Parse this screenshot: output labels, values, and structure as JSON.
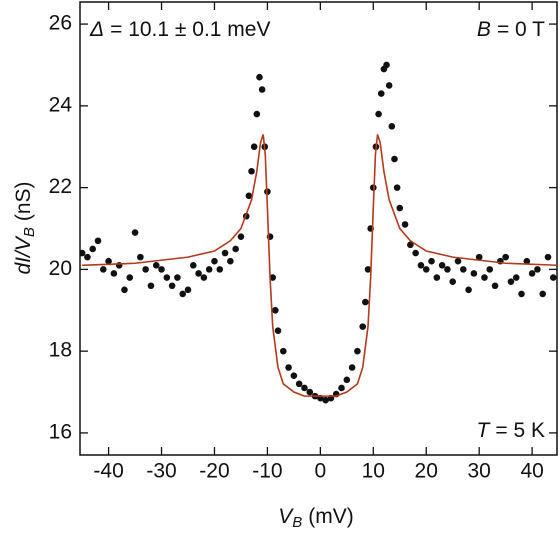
{
  "chart_data": {
    "type": "scatter",
    "xlabel": {
      "main": "V",
      "sub": "B",
      "unit": "(mV)"
    },
    "ylabel": {
      "main": "dI/V",
      "sub": "B",
      "unit": "(nS)"
    },
    "annotations": [
      {
        "symbol": "Δ",
        "text": "= 10.1 ± 0.1 meV"
      },
      {
        "symbol": "B",
        "text": "= 0 T"
      },
      {
        "symbol": "T",
        "text": "= 5 K"
      }
    ],
    "xlim": [
      -45.4,
      44.7
    ],
    "ylim": [
      15.46,
      26.54
    ],
    "xticks": [
      -40,
      -30,
      -20,
      -10,
      0,
      10,
      20,
      30,
      40
    ],
    "yticks": [
      16,
      18,
      20,
      22,
      24,
      26
    ],
    "series": [
      {
        "type": "scatter",
        "color": "#111111",
        "x": [
          -45,
          -44,
          -43,
          -42,
          -41,
          -40,
          -39,
          -38,
          -37,
          -36,
          -35,
          -34,
          -33,
          -32,
          -31,
          -30,
          -29,
          -28,
          -27,
          -26,
          -25,
          -24,
          -23,
          -22,
          -21,
          -20,
          -19,
          -18,
          -17,
          -16,
          -15,
          -14,
          -13.5,
          -13,
          -12.5,
          -12,
          -11.5,
          -11,
          -10.5,
          -10,
          -9.5,
          -9,
          -8.5,
          -8,
          -7,
          -6,
          -5,
          -4,
          -3,
          -2,
          -1,
          0,
          1,
          2,
          3,
          4,
          5,
          6,
          7,
          8,
          8.5,
          9,
          9.5,
          10,
          10.5,
          11,
          11.5,
          12,
          12.5,
          13,
          13.5,
          14,
          14.5,
          15,
          16,
          17,
          18,
          19,
          20,
          21,
          22,
          23,
          24,
          25,
          26,
          27,
          28,
          29,
          30,
          31,
          32,
          33,
          34,
          35,
          36,
          37,
          38,
          39,
          40,
          41,
          42,
          43,
          44
        ],
        "values": [
          20.4,
          20.3,
          20.5,
          20.7,
          20.0,
          20.2,
          19.9,
          20.1,
          19.5,
          19.8,
          20.9,
          20.3,
          20.0,
          19.6,
          20.1,
          20.0,
          19.8,
          19.6,
          19.8,
          19.4,
          19.5,
          20.1,
          19.9,
          19.8,
          20.0,
          20.2,
          20.0,
          20.4,
          20.2,
          20.5,
          20.8,
          21.3,
          21.8,
          22.4,
          23.0,
          23.8,
          24.7,
          24.4,
          23.0,
          21.9,
          20.8,
          19.8,
          19.0,
          18.5,
          18.0,
          17.6,
          17.4,
          17.2,
          17.1,
          17.0,
          16.9,
          16.85,
          16.8,
          16.85,
          16.95,
          17.1,
          17.3,
          17.6,
          18.0,
          18.6,
          19.2,
          20.0,
          21.0,
          22.0,
          23.0,
          23.8,
          24.3,
          24.9,
          25.0,
          24.5,
          23.5,
          22.7,
          22.0,
          21.5,
          21.1,
          20.6,
          20.4,
          20.1,
          20.0,
          20.2,
          19.8,
          20.1,
          20.0,
          19.7,
          20.2,
          20.0,
          19.5,
          19.9,
          20.3,
          19.8,
          20.0,
          19.6,
          20.2,
          20.3,
          19.7,
          19.8,
          19.4,
          20.2,
          19.9,
          20.0,
          19.4,
          20.3,
          19.8
        ]
      },
      {
        "type": "line",
        "color": "#b5391a",
        "x": [
          -45,
          -35,
          -25,
          -20,
          -17,
          -15,
          -13,
          -12,
          -11.3,
          -10.8,
          -10.4,
          -10,
          -9.5,
          -9,
          -8,
          -7,
          -5,
          -3,
          0,
          3,
          5,
          7,
          8,
          9,
          9.5,
          10,
          10.4,
          10.8,
          11.3,
          12,
          13,
          15,
          17,
          20,
          25,
          35,
          45
        ],
        "values": [
          20.1,
          20.15,
          20.3,
          20.45,
          20.7,
          21.0,
          21.7,
          22.4,
          23.1,
          23.3,
          22.8,
          21.5,
          19.8,
          18.6,
          17.6,
          17.2,
          17.0,
          16.9,
          16.9,
          16.9,
          17.0,
          17.2,
          17.6,
          18.6,
          19.8,
          21.5,
          22.8,
          23.3,
          23.1,
          22.4,
          21.7,
          21.0,
          20.7,
          20.45,
          20.3,
          20.15,
          20.1
        ]
      }
    ]
  }
}
